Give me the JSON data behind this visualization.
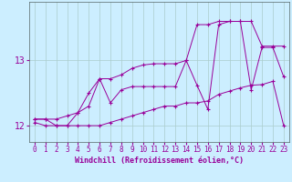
{
  "title": "",
  "xlabel": "Windchill (Refroidissement éolien,°C)",
  "background_color": "#cceeff",
  "grid_color": "#aacccc",
  "line_color": "#990099",
  "x_values": [
    0,
    1,
    2,
    3,
    4,
    5,
    6,
    7,
    8,
    9,
    10,
    11,
    12,
    13,
    14,
    15,
    16,
    17,
    18,
    19,
    20,
    21,
    22,
    23
  ],
  "y_main": [
    12.1,
    12.1,
    12.0,
    12.0,
    12.2,
    12.5,
    12.72,
    12.35,
    12.55,
    12.6,
    12.6,
    12.6,
    12.6,
    12.6,
    13.0,
    12.62,
    12.25,
    13.55,
    13.6,
    13.6,
    12.55,
    13.2,
    13.2,
    12.75
  ],
  "y_min": [
    12.05,
    12.0,
    12.0,
    12.0,
    12.0,
    12.0,
    12.0,
    12.05,
    12.1,
    12.15,
    12.2,
    12.25,
    12.3,
    12.3,
    12.35,
    12.35,
    12.38,
    12.48,
    12.53,
    12.58,
    12.62,
    12.63,
    12.68,
    12.0
  ],
  "y_max": [
    12.1,
    12.1,
    12.1,
    12.15,
    12.2,
    12.3,
    12.72,
    12.72,
    12.78,
    12.88,
    12.93,
    12.95,
    12.95,
    12.95,
    13.0,
    13.55,
    13.55,
    13.6,
    13.6,
    13.6,
    13.6,
    13.22,
    13.22,
    13.22
  ],
  "yticks": [
    12,
    13
  ],
  "ylim": [
    11.75,
    13.9
  ],
  "xlim": [
    -0.5,
    23.5
  ],
  "xlabel_fontsize": 6,
  "tick_fontsize": 5.5
}
